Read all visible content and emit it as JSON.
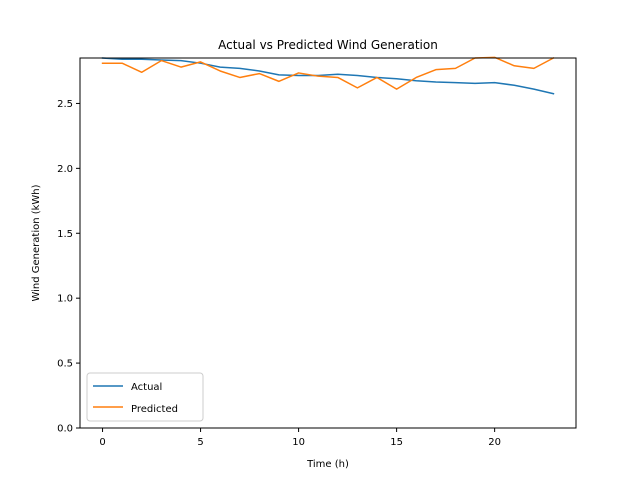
{
  "chart_data": {
    "type": "line",
    "title": "Actual vs Predicted Wind Generation",
    "xlabel": "Time (h)",
    "ylabel": "Wind Generation (kWh)",
    "xlim": [
      -1.15,
      24.15
    ],
    "ylim": [
      0,
      2.85
    ],
    "xticks": [
      0,
      5,
      10,
      15,
      20
    ],
    "yticks": [
      0.0,
      0.5,
      1.0,
      1.5,
      2.0,
      2.5
    ],
    "ytick_labels": [
      "0.0",
      "0.5",
      "1.0",
      "1.5",
      "2.0",
      "2.5"
    ],
    "grid": false,
    "legend_position": "lower-left",
    "x": [
      0,
      1,
      2,
      3,
      4,
      5,
      6,
      7,
      8,
      9,
      10,
      11,
      12,
      13,
      14,
      15,
      16,
      17,
      18,
      19,
      20,
      21,
      22,
      23
    ],
    "series": [
      {
        "name": "Actual",
        "color": "#1f77b4",
        "values": [
          2.85,
          2.84,
          2.84,
          2.835,
          2.83,
          2.81,
          2.78,
          2.77,
          2.75,
          2.72,
          2.715,
          2.715,
          2.725,
          2.715,
          2.7,
          2.69,
          2.675,
          2.665,
          2.66,
          2.655,
          2.66,
          2.64,
          2.61,
          2.575
        ]
      },
      {
        "name": "Predicted",
        "color": "#ff7f0e",
        "values": [
          2.81,
          2.81,
          2.74,
          2.83,
          2.78,
          2.82,
          2.75,
          2.7,
          2.73,
          2.67,
          2.735,
          2.71,
          2.7,
          2.62,
          2.7,
          2.61,
          2.7,
          2.76,
          2.77,
          2.85,
          2.855,
          2.79,
          2.77,
          2.85
        ]
      }
    ]
  }
}
